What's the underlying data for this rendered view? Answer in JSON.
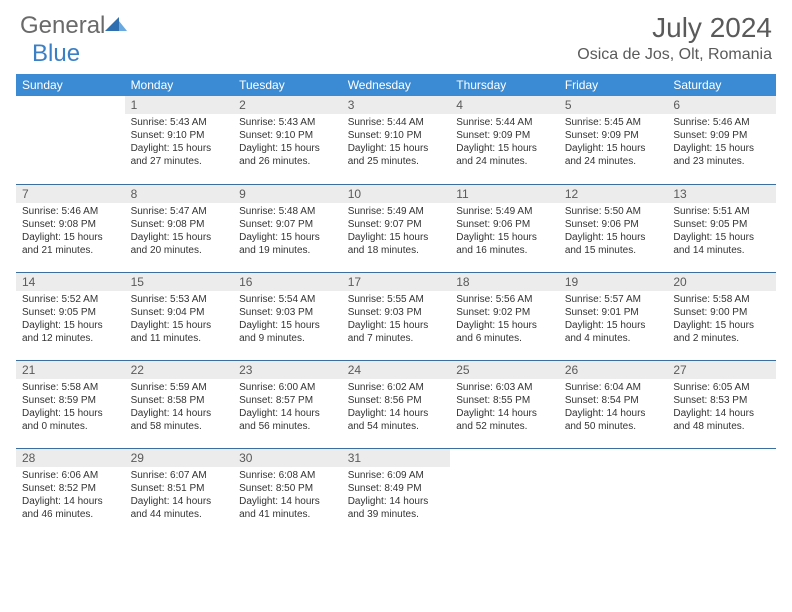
{
  "logo": {
    "general": "General",
    "blue": "Blue"
  },
  "title": "July 2024",
  "location": "Osica de Jos, Olt, Romania",
  "colors": {
    "header_bg": "#3b8bd4",
    "header_text": "#ffffff",
    "daynum_bg": "#ececec",
    "daynum_text": "#5a5a5a",
    "divider": "#3b6fa0",
    "title_text": "#5a5a5a",
    "body_text": "#333333",
    "logo_general": "#6a6a6a",
    "logo_blue": "#3b7fc4"
  },
  "typography": {
    "month_title_size": 28,
    "location_size": 16,
    "weekday_size": 12,
    "daynum_size": 12,
    "body_size": 10
  },
  "weekdays": [
    "Sunday",
    "Monday",
    "Tuesday",
    "Wednesday",
    "Thursday",
    "Friday",
    "Saturday"
  ],
  "grid": [
    [
      null,
      {
        "n": "1",
        "sr": "5:43 AM",
        "ss": "9:10 PM",
        "dl": "15 hours and 27 minutes."
      },
      {
        "n": "2",
        "sr": "5:43 AM",
        "ss": "9:10 PM",
        "dl": "15 hours and 26 minutes."
      },
      {
        "n": "3",
        "sr": "5:44 AM",
        "ss": "9:10 PM",
        "dl": "15 hours and 25 minutes."
      },
      {
        "n": "4",
        "sr": "5:44 AM",
        "ss": "9:09 PM",
        "dl": "15 hours and 24 minutes."
      },
      {
        "n": "5",
        "sr": "5:45 AM",
        "ss": "9:09 PM",
        "dl": "15 hours and 24 minutes."
      },
      {
        "n": "6",
        "sr": "5:46 AM",
        "ss": "9:09 PM",
        "dl": "15 hours and 23 minutes."
      }
    ],
    [
      {
        "n": "7",
        "sr": "5:46 AM",
        "ss": "9:08 PM",
        "dl": "15 hours and 21 minutes."
      },
      {
        "n": "8",
        "sr": "5:47 AM",
        "ss": "9:08 PM",
        "dl": "15 hours and 20 minutes."
      },
      {
        "n": "9",
        "sr": "5:48 AM",
        "ss": "9:07 PM",
        "dl": "15 hours and 19 minutes."
      },
      {
        "n": "10",
        "sr": "5:49 AM",
        "ss": "9:07 PM",
        "dl": "15 hours and 18 minutes."
      },
      {
        "n": "11",
        "sr": "5:49 AM",
        "ss": "9:06 PM",
        "dl": "15 hours and 16 minutes."
      },
      {
        "n": "12",
        "sr": "5:50 AM",
        "ss": "9:06 PM",
        "dl": "15 hours and 15 minutes."
      },
      {
        "n": "13",
        "sr": "5:51 AM",
        "ss": "9:05 PM",
        "dl": "15 hours and 14 minutes."
      }
    ],
    [
      {
        "n": "14",
        "sr": "5:52 AM",
        "ss": "9:05 PM",
        "dl": "15 hours and 12 minutes."
      },
      {
        "n": "15",
        "sr": "5:53 AM",
        "ss": "9:04 PM",
        "dl": "15 hours and 11 minutes."
      },
      {
        "n": "16",
        "sr": "5:54 AM",
        "ss": "9:03 PM",
        "dl": "15 hours and 9 minutes."
      },
      {
        "n": "17",
        "sr": "5:55 AM",
        "ss": "9:03 PM",
        "dl": "15 hours and 7 minutes."
      },
      {
        "n": "18",
        "sr": "5:56 AM",
        "ss": "9:02 PM",
        "dl": "15 hours and 6 minutes."
      },
      {
        "n": "19",
        "sr": "5:57 AM",
        "ss": "9:01 PM",
        "dl": "15 hours and 4 minutes."
      },
      {
        "n": "20",
        "sr": "5:58 AM",
        "ss": "9:00 PM",
        "dl": "15 hours and 2 minutes."
      }
    ],
    [
      {
        "n": "21",
        "sr": "5:58 AM",
        "ss": "8:59 PM",
        "dl": "15 hours and 0 minutes."
      },
      {
        "n": "22",
        "sr": "5:59 AM",
        "ss": "8:58 PM",
        "dl": "14 hours and 58 minutes."
      },
      {
        "n": "23",
        "sr": "6:00 AM",
        "ss": "8:57 PM",
        "dl": "14 hours and 56 minutes."
      },
      {
        "n": "24",
        "sr": "6:02 AM",
        "ss": "8:56 PM",
        "dl": "14 hours and 54 minutes."
      },
      {
        "n": "25",
        "sr": "6:03 AM",
        "ss": "8:55 PM",
        "dl": "14 hours and 52 minutes."
      },
      {
        "n": "26",
        "sr": "6:04 AM",
        "ss": "8:54 PM",
        "dl": "14 hours and 50 minutes."
      },
      {
        "n": "27",
        "sr": "6:05 AM",
        "ss": "8:53 PM",
        "dl": "14 hours and 48 minutes."
      }
    ],
    [
      {
        "n": "28",
        "sr": "6:06 AM",
        "ss": "8:52 PM",
        "dl": "14 hours and 46 minutes."
      },
      {
        "n": "29",
        "sr": "6:07 AM",
        "ss": "8:51 PM",
        "dl": "14 hours and 44 minutes."
      },
      {
        "n": "30",
        "sr": "6:08 AM",
        "ss": "8:50 PM",
        "dl": "14 hours and 41 minutes."
      },
      {
        "n": "31",
        "sr": "6:09 AM",
        "ss": "8:49 PM",
        "dl": "14 hours and 39 minutes."
      },
      null,
      null,
      null
    ]
  ],
  "labels": {
    "sunrise": "Sunrise:",
    "sunset": "Sunset:",
    "daylight": "Daylight:"
  }
}
